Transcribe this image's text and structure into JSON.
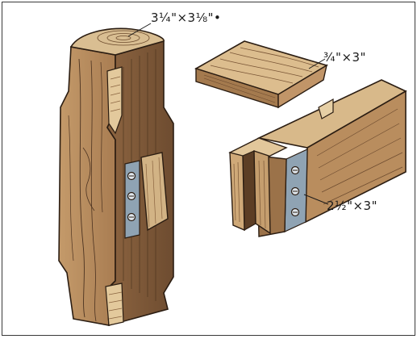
{
  "labels": {
    "post": "3¼\"×3⅛\"•",
    "board": "¾\"×3\"",
    "tenon_beam": "2½\"×3\""
  },
  "colors": {
    "wood_light": "#d8b98a",
    "wood_mid": "#b98d5e",
    "wood_dark": "#7a5636",
    "grain": "#4b3220",
    "steel": "#8fa3b3",
    "outline": "#2b1d12",
    "frame": "#3a3a3a"
  },
  "icons": [
    "post-icon",
    "board-icon",
    "tenon-beam-icon",
    "bolt-plate-icon"
  ]
}
